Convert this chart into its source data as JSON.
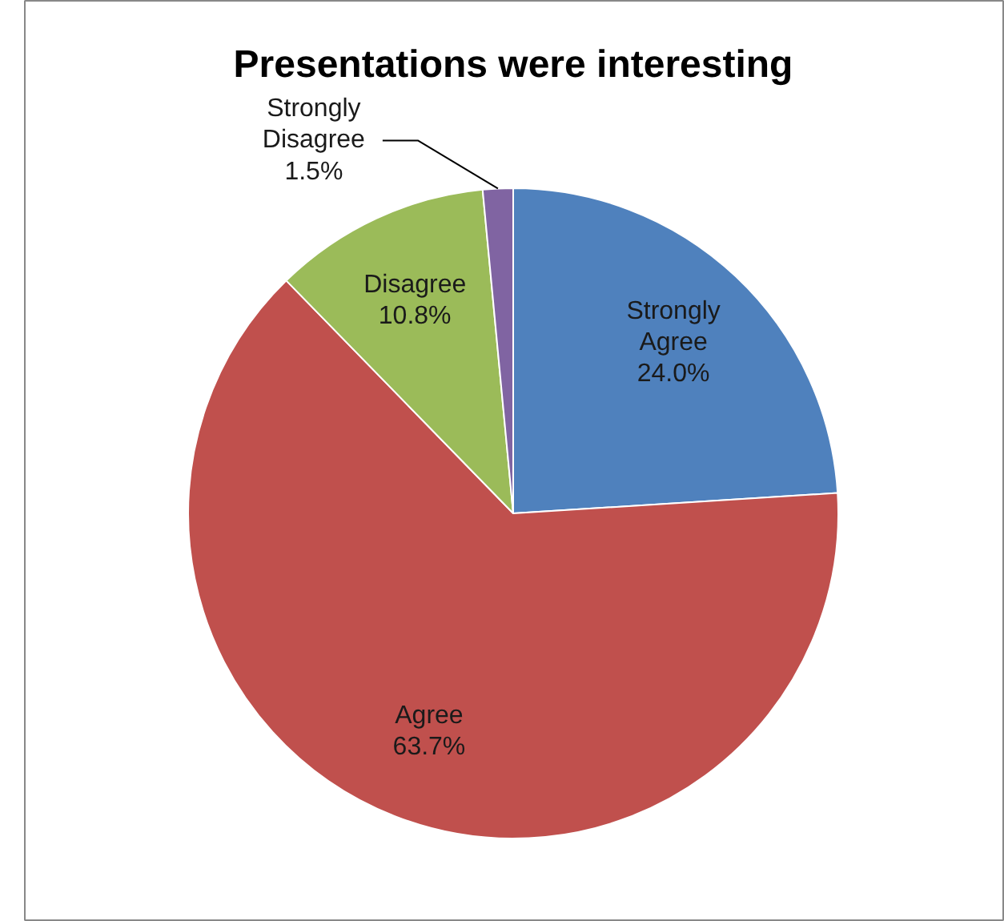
{
  "chart_data": {
    "type": "pie",
    "title": "Presentations were interesting",
    "categories": [
      "Strongly Agree",
      "Agree",
      "Disagree",
      "Strongly Disagree"
    ],
    "values": [
      24.0,
      63.7,
      10.8,
      1.5
    ],
    "colors": [
      "#4f81bd",
      "#c0504d",
      "#9bbb59",
      "#8064a2"
    ],
    "value_labels": [
      "24.0%",
      "63.7%",
      "10.8%",
      "1.5%"
    ]
  }
}
